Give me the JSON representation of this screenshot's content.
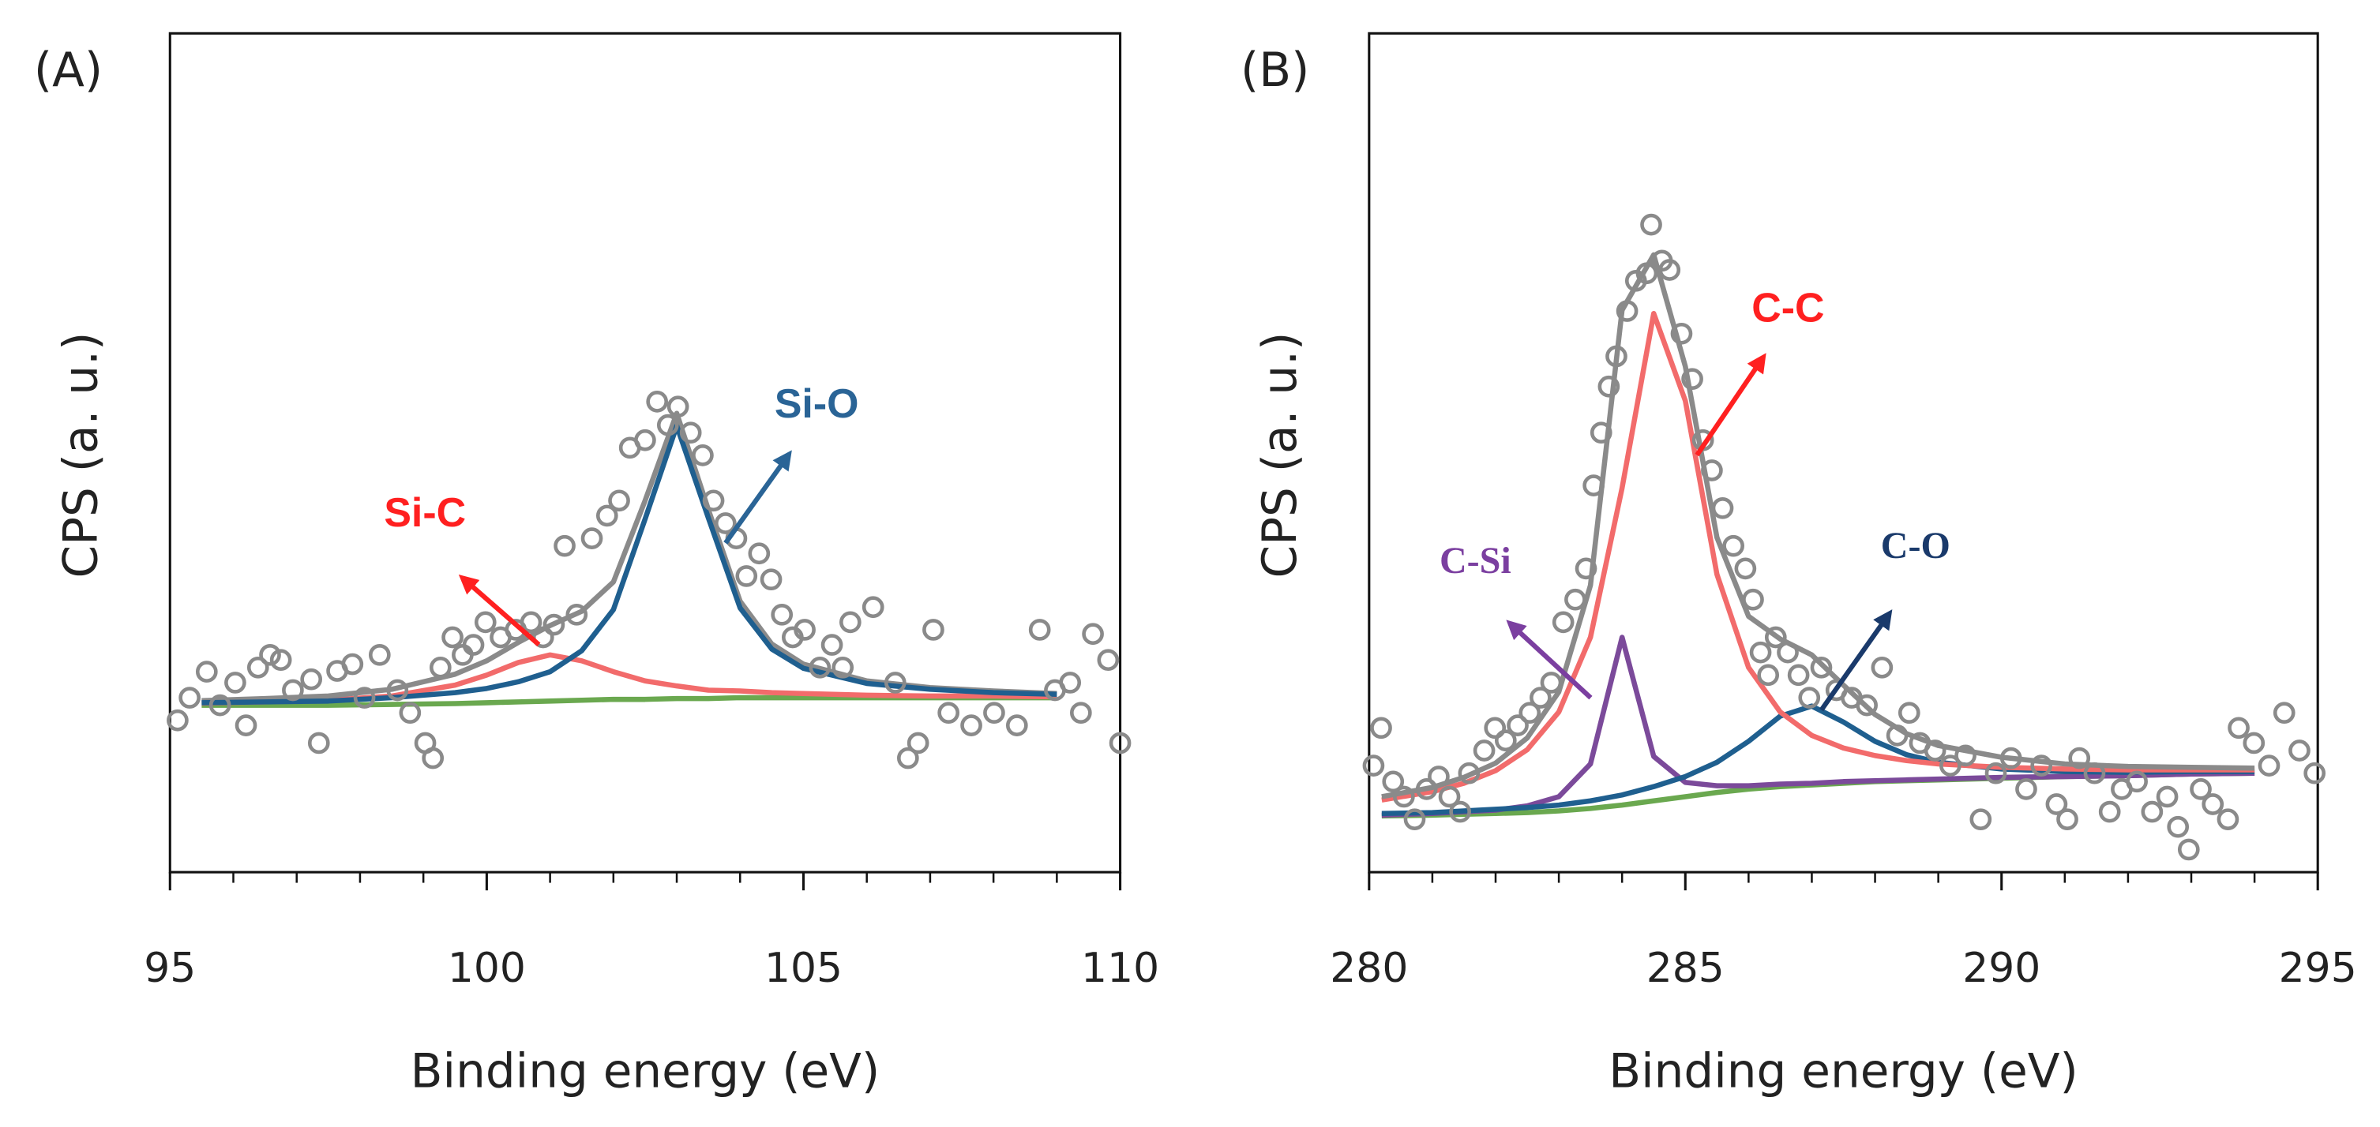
{
  "chart_data": [
    {
      "type": "line",
      "panel": "(A)",
      "xlabel": "Binding energy (eV)",
      "ylabel": "CPS (a. u.)",
      "xlim": [
        95,
        110
      ],
      "xticks": [
        95,
        100,
        105,
        110
      ],
      "xminorticks": [
        96,
        97,
        98,
        99,
        101,
        102,
        103,
        104,
        106,
        107,
        108,
        109
      ],
      "ylim": [
        0,
        100
      ],
      "series": [
        {
          "color": "#6aa84f",
          "x": [
            95.5,
            96.5,
            97.5,
            98.5,
            99.5,
            100,
            100.5,
            101,
            101.5,
            102,
            102.5,
            103,
            103.5,
            104,
            104.5,
            105,
            106,
            107,
            108,
            109
          ],
          "values": [
            19.9,
            19.9,
            19.9,
            20.0,
            20.1,
            20.2,
            20.3,
            20.4,
            20.5,
            20.6,
            20.6,
            20.7,
            20.7,
            20.8,
            20.8,
            20.8,
            20.8,
            20.8,
            20.8,
            20.8
          ]
        },
        {
          "name": "Si-C",
          "color": "#f26b6b",
          "label_color": "#ff2020",
          "x": [
            95.5,
            96.5,
            97.5,
            98.5,
            99.5,
            100,
            100.5,
            101,
            101.5,
            102,
            102.5,
            103,
            103.5,
            104,
            104.5,
            105,
            106,
            107,
            108,
            109
          ],
          "values": [
            20.15,
            20.3,
            20.5,
            21.0,
            22.3,
            23.5,
            25.0,
            25.9,
            25.2,
            23.9,
            22.8,
            22.2,
            21.7,
            21.6,
            21.4,
            21.3,
            21.1,
            21.0,
            21.0,
            20.9
          ]
        },
        {
          "color": "#8a8a8a",
          "x": [
            95.5,
            96.5,
            97.5,
            98.5,
            99.5,
            100,
            100.5,
            101,
            101.5,
            102,
            102.5,
            103,
            103.5,
            104,
            104.5,
            105,
            106,
            107,
            108,
            109
          ],
          "values": [
            20.45,
            20.7,
            21.0,
            21.8,
            23.6,
            25.2,
            27.4,
            29.4,
            31.1,
            34.6,
            44.3,
            54.7,
            43.2,
            32.3,
            27.2,
            24.8,
            22.8,
            22.0,
            21.6,
            21.3
          ]
        },
        {
          "name": "Si-O",
          "color": "#1f5f8f",
          "label_color": "#2a6496",
          "x": [
            95.5,
            96.5,
            97.5,
            98.5,
            99.5,
            100,
            100.5,
            101,
            101.5,
            102,
            102.5,
            103,
            103.5,
            104,
            104.5,
            105,
            106,
            107,
            108,
            109
          ],
          "values": [
            20.2,
            20.3,
            20.4,
            20.8,
            21.4,
            21.9,
            22.7,
            23.9,
            26.4,
            31.3,
            42.1,
            53.2,
            42.2,
            31.5,
            26.6,
            24.3,
            22.5,
            21.8,
            21.4,
            21.2
          ]
        }
      ],
      "points": {
        "color": "#8a8a8a",
        "x": [
          95.12,
          95.31,
          95.58,
          95.79,
          96.03,
          96.2,
          96.39,
          96.58,
          96.75,
          96.94,
          97.23,
          97.35,
          97.64,
          97.88,
          98.07,
          98.31,
          98.59,
          98.79,
          99.03,
          99.15,
          99.27,
          99.46,
          99.62,
          99.79,
          99.98,
          100.22,
          100.46,
          100.7,
          100.89,
          101.06,
          101.23,
          101.42,
          101.66,
          101.9,
          102.09,
          102.26,
          102.5,
          102.69,
          102.86,
          103.02,
          103.22,
          103.41,
          103.58,
          103.77,
          103.94,
          104.1,
          104.3,
          104.49,
          104.66,
          104.83,
          105.02,
          105.26,
          105.45,
          105.62,
          105.74,
          106.1,
          106.45,
          106.65,
          106.81,
          107.05,
          107.29,
          107.65,
          108.01,
          108.37,
          108.73,
          108.97,
          109.21,
          109.38,
          109.57,
          109.81,
          110.0
        ],
        "values": [
          18.1,
          20.8,
          23.9,
          19.9,
          22.6,
          17.5,
          24.4,
          25.9,
          25.3,
          21.7,
          23.0,
          15.4,
          24.0,
          24.8,
          20.8,
          25.9,
          21.7,
          19.0,
          15.4,
          13.6,
          24.4,
          28.0,
          25.9,
          27.1,
          29.8,
          28.0,
          28.9,
          29.8,
          28.0,
          29.5,
          38.9,
          30.7,
          39.8,
          42.5,
          44.3,
          50.6,
          51.5,
          56.1,
          53.3,
          55.5,
          52.4,
          49.7,
          44.3,
          41.6,
          39.8,
          35.3,
          38.0,
          34.9,
          30.7,
          28.0,
          28.9,
          24.4,
          27.1,
          24.4,
          29.8,
          31.6,
          22.6,
          13.6,
          15.4,
          28.9,
          19.0,
          17.5,
          19.0,
          17.5,
          28.9,
          21.7,
          22.6,
          19.0,
          28.4,
          25.3,
          15.4
        ]
      }
    },
    {
      "type": "line",
      "panel": "(B)",
      "xlabel": "Binding energy (eV)",
      "ylabel": "CPS (a. u.)",
      "xlim": [
        280,
        295
      ],
      "xticks": [
        280,
        285,
        290,
        295
      ],
      "xminorticks": [
        281,
        282,
        283,
        284,
        286,
        287,
        288,
        289,
        291,
        292,
        293,
        294
      ],
      "ylim": [
        0,
        100
      ],
      "series": [
        {
          "color": "#6aa84f",
          "x": [
            280.2,
            281,
            281.5,
            282,
            282.5,
            283,
            283.5,
            284,
            284.5,
            285,
            285.5,
            286,
            286.5,
            287,
            287.5,
            288,
            288.5,
            289,
            290,
            291,
            292,
            293,
            294
          ],
          "values": [
            6.7,
            6.8,
            6.9,
            7.0,
            7.1,
            7.3,
            7.6,
            8.0,
            8.5,
            9.0,
            9.5,
            9.9,
            10.2,
            10.4,
            10.6,
            10.8,
            10.9,
            11.0,
            11.2,
            11.4,
            11.5,
            11.7,
            11.8
          ]
        },
        {
          "name": "C-Si",
          "color": "#7b4a9a",
          "label_color": "#7b3fa0",
          "x": [
            280.2,
            281,
            281.5,
            282,
            282.5,
            283,
            283.5,
            284,
            284.5,
            285,
            285.5,
            286,
            286.5,
            287,
            287.5,
            288,
            288.5,
            289,
            290,
            291,
            292,
            293,
            294
          ],
          "values": [
            6.8,
            7.0,
            7.2,
            7.4,
            7.9,
            9.0,
            12.9,
            28.0,
            13.8,
            10.7,
            10.3,
            10.3,
            10.5,
            10.6,
            10.8,
            10.9,
            11.0,
            11.1,
            11.3,
            11.4,
            11.5,
            11.7,
            11.8
          ]
        },
        {
          "name": "C-O",
          "color": "#1f5f8f",
          "label_color": "#1a3a6b",
          "x": [
            280.2,
            281,
            281.5,
            282,
            282.5,
            283,
            283.5,
            284,
            284.5,
            285,
            285.5,
            286,
            286.5,
            287,
            287.5,
            288,
            288.5,
            289,
            290,
            291,
            292,
            293,
            294
          ],
          "values": [
            7.0,
            7.1,
            7.3,
            7.5,
            7.7,
            8.0,
            8.5,
            9.2,
            10.2,
            11.4,
            13.1,
            15.6,
            18.6,
            19.8,
            17.9,
            15.6,
            14.0,
            13.1,
            12.3,
            12.0,
            11.9,
            12.0,
            12.0
          ]
        },
        {
          "name": "C-C",
          "color": "#f26b6b",
          "label_color": "#ff2020",
          "x": [
            280.2,
            281,
            281.5,
            282,
            282.5,
            283,
            283.5,
            284,
            284.5,
            285,
            285.5,
            286,
            286.5,
            287,
            287.5,
            288,
            288.5,
            289,
            290,
            291,
            292,
            293,
            294
          ],
          "values": [
            8.6,
            9.6,
            10.6,
            12.1,
            14.6,
            19.1,
            28.0,
            45.8,
            66.6,
            56.2,
            35.5,
            24.4,
            19.1,
            16.3,
            14.8,
            13.9,
            13.3,
            12.9,
            12.5,
            12.3,
            12.2,
            12.2,
            12.2
          ]
        },
        {
          "color": "#8a8a8a",
          "x": [
            280.2,
            281,
            281.5,
            282,
            282.5,
            283,
            283.5,
            284,
            284.5,
            285,
            285.5,
            286,
            286.5,
            287,
            287.5,
            288,
            288.5,
            289,
            290,
            291,
            292,
            293,
            294
          ],
          "values": [
            9.0,
            10.1,
            11.3,
            13.0,
            16.0,
            21.5,
            34.2,
            67.0,
            73.6,
            60.3,
            39.9,
            30.5,
            27.8,
            25.9,
            22.3,
            18.8,
            16.5,
            15.1,
            13.7,
            12.9,
            12.6,
            12.5,
            12.4
          ]
        }
      ],
      "points": {
        "color": "#8a8a8a",
        "x": [
          280.07,
          280.19,
          280.38,
          280.55,
          280.72,
          280.91,
          281.1,
          281.27,
          281.44,
          281.58,
          281.82,
          281.99,
          282.16,
          282.35,
          282.54,
          282.71,
          282.88,
          283.07,
          283.26,
          283.43,
          283.55,
          283.67,
          283.79,
          283.91,
          284.08,
          284.22,
          284.39,
          284.46,
          284.63,
          284.75,
          284.94,
          285.11,
          285.28,
          285.42,
          285.59,
          285.76,
          285.95,
          286.07,
          286.19,
          286.31,
          286.43,
          286.62,
          286.79,
          286.96,
          287.15,
          287.39,
          287.63,
          287.87,
          288.11,
          288.35,
          288.54,
          288.71,
          288.95,
          289.19,
          289.43,
          289.67,
          289.91,
          290.15,
          290.39,
          290.63,
          290.87,
          291.04,
          291.23,
          291.47,
          291.71,
          291.9,
          292.14,
          292.38,
          292.62,
          292.79,
          292.96,
          293.15,
          293.34,
          293.58,
          293.75,
          293.99,
          294.23,
          294.47,
          294.71,
          294.95
        ],
        "values": [
          12.7,
          17.2,
          10.8,
          9.0,
          6.3,
          9.9,
          11.4,
          9.0,
          7.2,
          11.8,
          14.5,
          17.2,
          15.7,
          17.5,
          19.0,
          20.8,
          22.6,
          29.8,
          32.5,
          36.2,
          46.1,
          52.4,
          57.9,
          61.5,
          66.9,
          70.5,
          71.4,
          77.2,
          72.9,
          71.8,
          64.2,
          58.8,
          51.5,
          47.9,
          43.4,
          38.9,
          36.2,
          32.5,
          26.2,
          23.5,
          28.0,
          26.2,
          23.5,
          20.8,
          24.4,
          21.7,
          20.8,
          19.9,
          24.4,
          16.3,
          19.0,
          15.4,
          14.5,
          12.7,
          13.9,
          6.3,
          11.8,
          13.6,
          9.9,
          12.7,
          8.1,
          6.3,
          13.6,
          11.8,
          7.2,
          9.9,
          10.8,
          7.2,
          9.0,
          5.4,
          2.7,
          9.9,
          8.1,
          6.3,
          17.2,
          15.4,
          12.7,
          19.0,
          14.5,
          11.8
        ]
      }
    }
  ]
}
